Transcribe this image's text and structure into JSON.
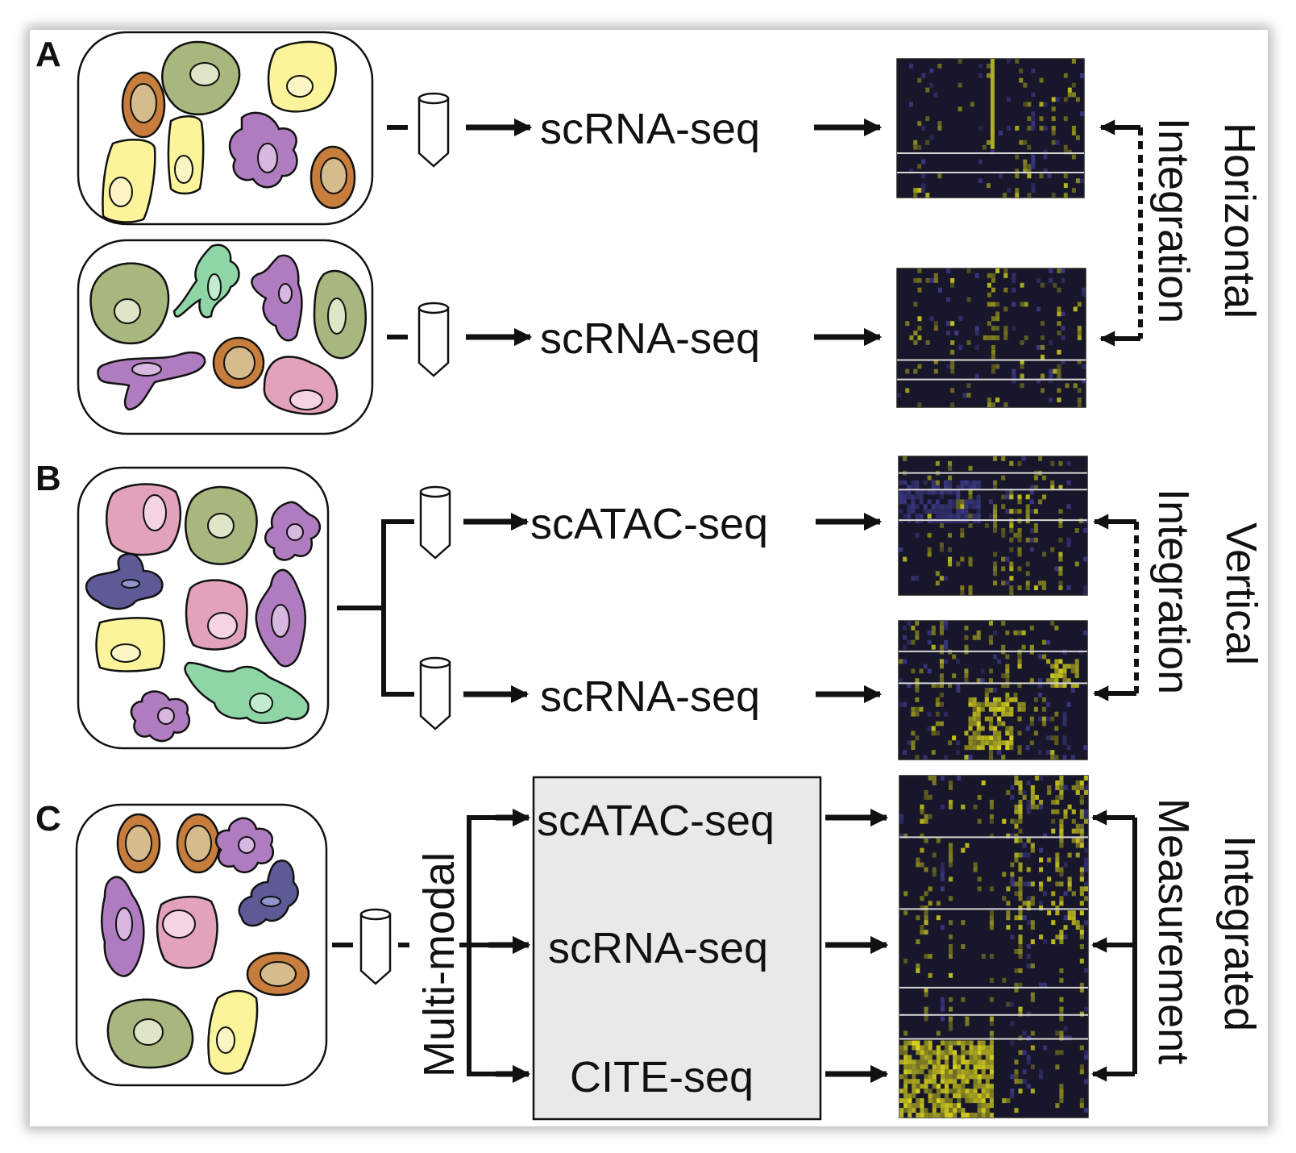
{
  "panels": {
    "A": {
      "letter": "A",
      "assays": [
        "scRNA-seq",
        "scRNA-seq"
      ],
      "side_label": [
        "Horizontal",
        "Integration"
      ]
    },
    "B": {
      "letter": "B",
      "assays": [
        "scATAC-seq",
        "scRNA-seq"
      ],
      "side_label": [
        "Vertical",
        "Integration"
      ]
    },
    "C": {
      "letter": "C",
      "assays": [
        "scATAC-seq",
        "scRNA-seq",
        "CITE-seq"
      ],
      "multimodal_label": "Multi-modal",
      "side_label": [
        "Integrated",
        "Measurement"
      ]
    }
  },
  "colors": {
    "cell_yellow": "#fcf49a",
    "cell_green": "#a7b77e",
    "cell_orange": "#c77d3c",
    "cell_purple": "#b07cc0",
    "cell_pink": "#e3a2bc",
    "cell_mint": "#8fd6a6",
    "cell_navy": "#5d5a96",
    "heatmap_bg": "#17162a",
    "heatmap_yellow": "#c9c81e",
    "heatmap_blue": "#3c3a86",
    "box_fill": "#e9e9e9"
  }
}
